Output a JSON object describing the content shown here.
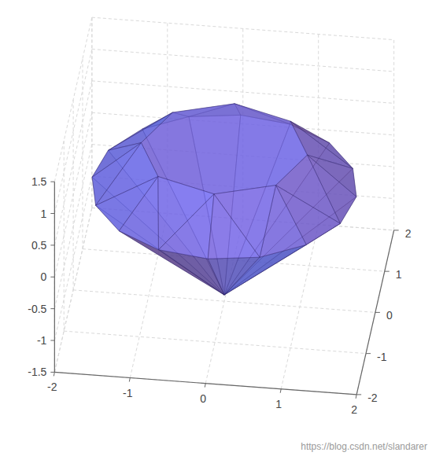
{
  "chart_data": {
    "type": "polyhedron3d",
    "vertices": {
      "x": [
        1.1,
        0.78,
        0,
        -0.78,
        -1.1,
        -0.78,
        0,
        0.78,
        1.75,
        1.62,
        1.24,
        0.67,
        0,
        -0.67,
        -1.24,
        -1.62,
        -1.75,
        -1.62,
        -1.24,
        -0.67,
        0,
        0.67,
        1.24,
        1.62,
        0
      ],
      "y": [
        0,
        0.78,
        1.1,
        0.78,
        0,
        -0.78,
        -1.1,
        -0.78,
        0,
        0.67,
        1.24,
        1.62,
        1.75,
        1.62,
        1.24,
        0.67,
        0,
        -0.67,
        -1.24,
        -1.62,
        -1.75,
        -1.62,
        -1.24,
        -0.67,
        0
      ],
      "z": [
        0.9,
        0.9,
        0.9,
        0.9,
        0.9,
        0.9,
        0.9,
        0.9,
        0.3,
        0.3,
        0.3,
        0.3,
        0.3,
        0.3,
        0.3,
        0.3,
        0.3,
        0.3,
        0.3,
        0.3,
        0.3,
        0.3,
        0.3,
        0.3,
        -1.4
      ]
    },
    "faces": [
      [
        0,
        1,
        2,
        3,
        4,
        5,
        6,
        7
      ],
      [
        0,
        8,
        9
      ],
      [
        0,
        9,
        1
      ],
      [
        1,
        9,
        10
      ],
      [
        1,
        10,
        11
      ],
      [
        1,
        11,
        2
      ],
      [
        2,
        11,
        12
      ],
      [
        2,
        12,
        13
      ],
      [
        2,
        13,
        3
      ],
      [
        3,
        13,
        14
      ],
      [
        3,
        14,
        15
      ],
      [
        3,
        15,
        4
      ],
      [
        4,
        15,
        16
      ],
      [
        4,
        16,
        17
      ],
      [
        4,
        17,
        5
      ],
      [
        5,
        17,
        18
      ],
      [
        5,
        18,
        19
      ],
      [
        5,
        19,
        6
      ],
      [
        6,
        19,
        20
      ],
      [
        6,
        20,
        21
      ],
      [
        6,
        21,
        7
      ],
      [
        7,
        21,
        22
      ],
      [
        7,
        22,
        23
      ],
      [
        7,
        23,
        0
      ],
      [
        0,
        23,
        8
      ],
      [
        8,
        9,
        24
      ],
      [
        9,
        10,
        24
      ],
      [
        10,
        11,
        24
      ],
      [
        11,
        12,
        24
      ],
      [
        12,
        13,
        24
      ],
      [
        13,
        14,
        24
      ],
      [
        14,
        15,
        24
      ],
      [
        15,
        16,
        24
      ],
      [
        16,
        17,
        24
      ],
      [
        17,
        18,
        24
      ],
      [
        18,
        19,
        24
      ],
      [
        19,
        20,
        24
      ],
      [
        20,
        21,
        24
      ],
      [
        21,
        22,
        24
      ],
      [
        22,
        23,
        24
      ],
      [
        23,
        8,
        24
      ]
    ],
    "color": "#6b5fd8",
    "xlim": [
      -2,
      2
    ],
    "ylim": [
      -2,
      2
    ],
    "zlim": [
      -1.5,
      1.5
    ],
    "xticks": [
      -2,
      -1,
      0,
      1,
      2
    ],
    "yticks": [
      -2,
      -1,
      0,
      1,
      2
    ],
    "zticks": [
      -1.5,
      -1,
      -0.5,
      0,
      0.5,
      1,
      1.5
    ],
    "grid": true,
    "annotations": [
      "https://blog.csdn.net/slandarer"
    ]
  }
}
